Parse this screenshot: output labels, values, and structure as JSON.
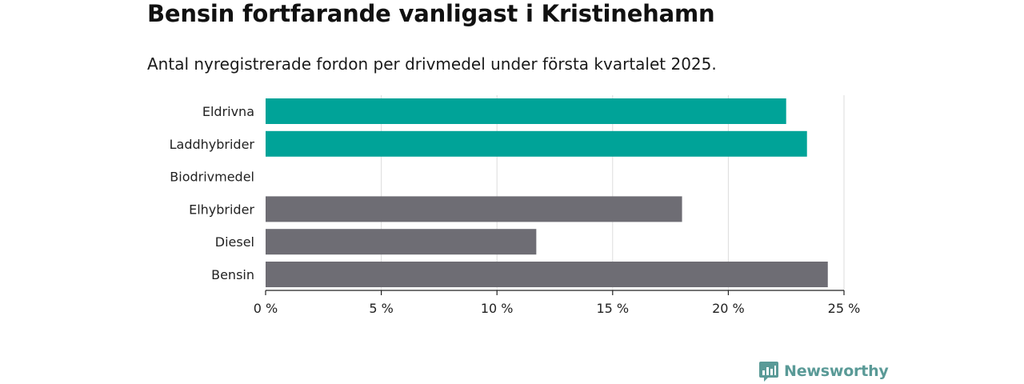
{
  "header": {
    "title": "Bensin fortfarande vanligast i Kristinehamn",
    "subtitle": "Antal nyregistrerade fordon per drivmedel under första kvartalet 2025."
  },
  "brand": {
    "name": "Newsworthy",
    "logo_icon": "bar-chart-bubble-icon",
    "color": "#5a9a97"
  },
  "colors": {
    "highlight": "#00a398",
    "default": "#6e6d74",
    "grid": "#dddddd",
    "axis": "#222222"
  },
  "chart_data": {
    "type": "bar",
    "orientation": "horizontal",
    "categories": [
      "Eldrivna",
      "Laddhybrider",
      "Biodrivmedel",
      "Elhybrider",
      "Diesel",
      "Bensin"
    ],
    "values": [
      22.5,
      23.4,
      0,
      18.0,
      11.7,
      24.3
    ],
    "highlighted": [
      true,
      true,
      false,
      false,
      false,
      false
    ],
    "unit": "%",
    "xlim": [
      0,
      25
    ],
    "xticks": [
      0,
      5,
      10,
      15,
      20,
      25
    ],
    "xtick_labels": [
      "0 %",
      "5 %",
      "10 %",
      "15 %",
      "20 %",
      "25 %"
    ],
    "grid": true,
    "legend": "none"
  }
}
